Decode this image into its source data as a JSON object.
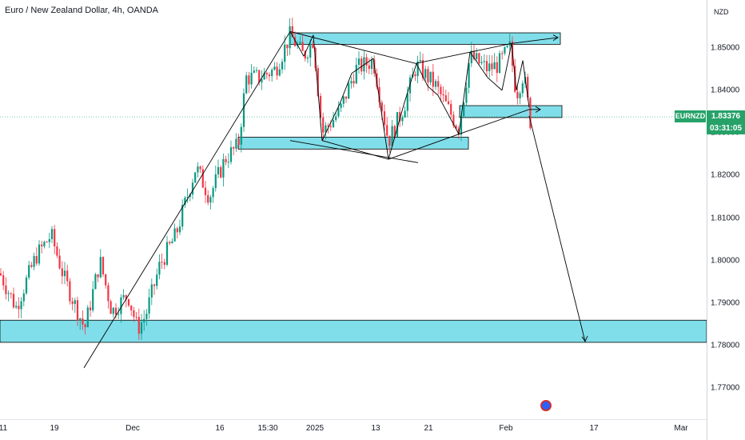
{
  "header": {
    "title": "Euro / New Zealand Dollar, 4h, OANDA"
  },
  "price_axis": {
    "currency": "NZD"
  },
  "symbol_badge": "EURNZD",
  "current_price": "1.83376",
  "countdown": "03:31:05",
  "colors": {
    "up_candle": "#089981",
    "down_candle": "#f23645",
    "zone_fill": "#80deea",
    "zone_border": "#000000",
    "badge": "#26a269",
    "drawing": "#000000"
  },
  "event_icon": "economic-event-icon",
  "chart_data": {
    "type": "candlestick",
    "title": "Euro / New Zealand Dollar, 4h, OANDA",
    "ylim": [
      1.7635,
      1.8567
    ],
    "y_ticks": [
      "1.85000",
      "1.84000",
      "1.83000",
      "1.82000",
      "1.81000",
      "1.80000",
      "1.79000",
      "1.78000",
      "1.77000"
    ],
    "x_ticks": [
      "11",
      "19",
      "Dec",
      "16",
      "15:30",
      "2025",
      "13",
      "21",
      "Feb",
      "17",
      "Mar"
    ],
    "x_tick_positions_index": [
      0,
      68,
      166,
      275,
      335,
      394,
      470,
      536,
      633,
      743,
      852
    ],
    "last_price": 1.83376,
    "grid": false,
    "zones": [
      {
        "x_start": 0,
        "x_end": 884,
        "y_top": 1.786,
        "y_bottom": 1.7808,
        "name": "support zone"
      },
      {
        "x_start": 298,
        "x_end": 586,
        "y_top": 1.829,
        "y_bottom": 1.8262,
        "name": "range low zone"
      },
      {
        "x_start": 363,
        "x_end": 701,
        "y_top": 1.8535,
        "y_bottom": 1.8508,
        "name": "range high zone"
      },
      {
        "x_start": 575,
        "x_end": 703,
        "y_top": 1.8364,
        "y_bottom": 1.8336,
        "name": "breakdown zone"
      }
    ],
    "key_prices": {
      "start_low": 1.7748,
      "range_top": 1.8538,
      "range_bottom": 1.8238,
      "forecast_target": 1.781
    }
  }
}
